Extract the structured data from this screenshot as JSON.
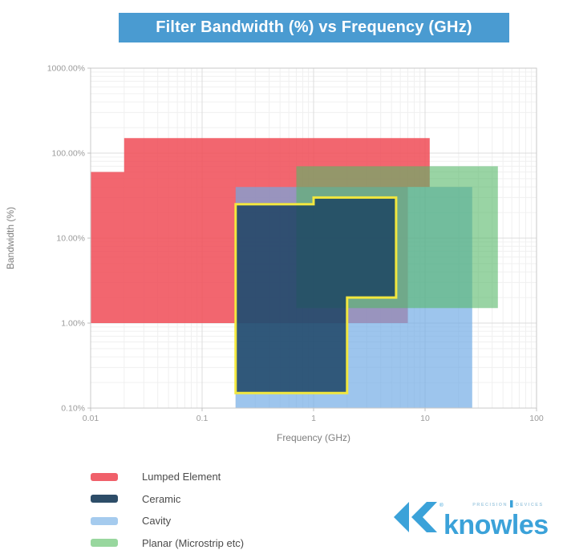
{
  "title": {
    "text": "Filter Bandwidth (%) vs Frequency (GHz)",
    "bg": "#4a9bd1",
    "color": "#ffffff"
  },
  "chart_data": {
    "type": "area",
    "subtype": "log-log-regions",
    "title": "Filter Bandwidth (%) vs Frequency (GHz)",
    "xlabel": "Frequency (GHz)",
    "ylabel": "Bandwidth (%)",
    "grid": {
      "major": true,
      "minor": true
    },
    "legend_position": "bottom-left",
    "x_axis": {
      "scale": "log",
      "min": 0.01,
      "max": 100,
      "ticks": [
        {
          "v": 0.01,
          "label": "0.01"
        },
        {
          "v": 0.1,
          "label": "0.1"
        },
        {
          "v": 1,
          "label": "1"
        },
        {
          "v": 10,
          "label": "10"
        },
        {
          "v": 100,
          "label": "100"
        }
      ]
    },
    "y_axis": {
      "scale": "log",
      "min": 0.1,
      "max": 1000,
      "ticks": [
        {
          "v": 1000,
          "label": "1000.00%"
        },
        {
          "v": 100,
          "label": "100.00%"
        },
        {
          "v": 10,
          "label": "10.00%"
        },
        {
          "v": 1,
          "label": "1.00%"
        },
        {
          "v": 0.1,
          "label": "0.10%"
        }
      ]
    },
    "regions": [
      {
        "name": "Lumped Element",
        "fill": "rgba(240,75,86,0.85)",
        "legend_color": "#f0606a",
        "points": [
          [
            0.01,
            1
          ],
          [
            0.01,
            60
          ],
          [
            0.02,
            60
          ],
          [
            0.02,
            150
          ],
          [
            11,
            150
          ],
          [
            11,
            40
          ],
          [
            7,
            40
          ],
          [
            7,
            1
          ]
        ]
      },
      {
        "name": "Ceramic",
        "fill": "rgba(25,64,96,0.82)",
        "stroke": "#f2e73e",
        "stroke_width": 3,
        "legend_color": "#2d4d68",
        "points": [
          [
            0.2,
            0.15
          ],
          [
            0.2,
            25
          ],
          [
            1,
            25
          ],
          [
            1,
            30
          ],
          [
            5.5,
            30
          ],
          [
            5.5,
            2
          ],
          [
            2,
            2
          ],
          [
            2,
            0.15
          ]
        ]
      },
      {
        "name": "Cavity",
        "fill": "rgba(110,170,228,0.68)",
        "legend_color": "#a5cbee",
        "points": [
          [
            0.2,
            0.1
          ],
          [
            0.2,
            40
          ],
          [
            26.5,
            40
          ],
          [
            26.5,
            0.1
          ]
        ]
      },
      {
        "name": "Planar (Microstrip etc)",
        "fill": "rgba(85,183,103,0.60)",
        "legend_color": "#98d79e",
        "points": [
          [
            0.7,
            1.5
          ],
          [
            0.7,
            70
          ],
          [
            45,
            70
          ],
          [
            45,
            1.5
          ]
        ]
      }
    ],
    "draw_order": [
      0,
      2,
      3,
      1
    ]
  },
  "logo": {
    "brand": "knowles",
    "tagline_left": "PRECISION",
    "tagline_right": "DEVICES",
    "color": "#3ba2d9",
    "tagline_color": "#a7cde2"
  }
}
